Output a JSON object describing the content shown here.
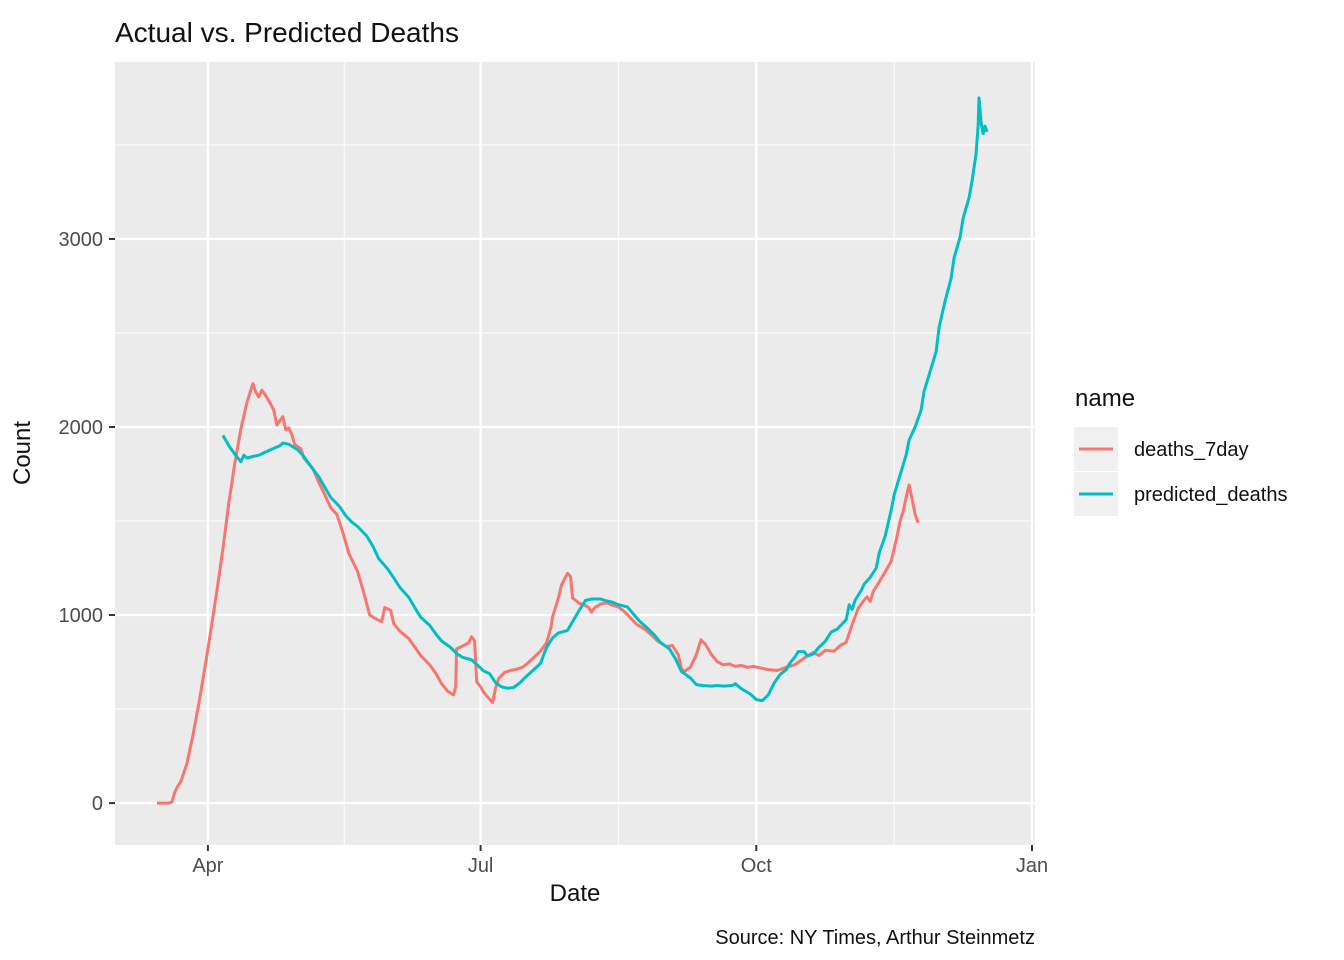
{
  "chart_data": {
    "type": "line",
    "title": "Actual vs. Predicted Deaths",
    "xlabel": "Date",
    "ylabel": "Count",
    "caption": "Source: NY Times, Arthur Steinmetz",
    "legend": {
      "title": "name",
      "position": "right",
      "entries": [
        "deaths_7day",
        "predicted_deaths"
      ]
    },
    "colors": {
      "deaths_7day": "#F8766D",
      "predicted_deaths": "#00BFC4",
      "panel_background": "#EBEBEB",
      "gridline": "#FFFFFF",
      "tick_mark": "#333333",
      "tick_text": "#4D4D4D",
      "legend_key_fill": "#F0F0F0",
      "plot_background": "#FFFFFF"
    },
    "x_axis": {
      "type": "date",
      "day0_date": "2020-03-01",
      "domain_days": [
        0,
        307
      ],
      "major_ticks": [
        {
          "day": 31,
          "label": "Apr"
        },
        {
          "day": 122,
          "label": "Jul"
        },
        {
          "day": 214,
          "label": "Oct"
        },
        {
          "day": 306,
          "label": "Jan"
        }
      ],
      "minor_tick_days": [
        76.5,
        168,
        260
      ]
    },
    "y_axis": {
      "domain": [
        -223,
        3941
      ],
      "major_ticks": [
        {
          "value": 0,
          "label": "0"
        },
        {
          "value": 1000,
          "label": "1000"
        },
        {
          "value": 2000,
          "label": "2000"
        },
        {
          "value": 3000,
          "label": "3000"
        }
      ],
      "minor_tick_values": [
        500,
        1500,
        2500,
        3500
      ]
    },
    "series": [
      {
        "name": "deaths_7day",
        "color": "#F8766D",
        "points": [
          [
            14,
            0
          ],
          [
            16,
            0
          ],
          [
            18,
            0
          ],
          [
            19,
            5
          ],
          [
            20,
            60
          ],
          [
            21,
            90
          ],
          [
            22,
            115
          ],
          [
            24,
            210
          ],
          [
            26,
            360
          ],
          [
            28,
            530
          ],
          [
            30,
            720
          ],
          [
            32,
            920
          ],
          [
            34,
            1130
          ],
          [
            36,
            1350
          ],
          [
            38,
            1600
          ],
          [
            40,
            1810
          ],
          [
            42,
            1990
          ],
          [
            44,
            2130
          ],
          [
            46,
            2230
          ],
          [
            47,
            2185
          ],
          [
            48,
            2160
          ],
          [
            49,
            2195
          ],
          [
            50,
            2175
          ],
          [
            52,
            2120
          ],
          [
            53,
            2090
          ],
          [
            54,
            2010
          ],
          [
            56,
            2055
          ],
          [
            57,
            1985
          ],
          [
            58,
            1995
          ],
          [
            59,
            1960
          ],
          [
            60,
            1905
          ],
          [
            62,
            1885
          ],
          [
            63,
            1835
          ],
          [
            66,
            1780
          ],
          [
            68,
            1705
          ],
          [
            70,
            1640
          ],
          [
            72,
            1570
          ],
          [
            74,
            1535
          ],
          [
            76,
            1440
          ],
          [
            78,
            1330
          ],
          [
            81,
            1230
          ],
          [
            83,
            1120
          ],
          [
            85,
            1000
          ],
          [
            87,
            980
          ],
          [
            89,
            965
          ],
          [
            90,
            1040
          ],
          [
            92,
            1025
          ],
          [
            93,
            955
          ],
          [
            95,
            915
          ],
          [
            98,
            875
          ],
          [
            100,
            830
          ],
          [
            102,
            785
          ],
          [
            105,
            735
          ],
          [
            107,
            690
          ],
          [
            109,
            635
          ],
          [
            111,
            595
          ],
          [
            113,
            575
          ],
          [
            113.7,
            620
          ],
          [
            114,
            820
          ],
          [
            116,
            835
          ],
          [
            118,
            852
          ],
          [
            119,
            885
          ],
          [
            120,
            862
          ],
          [
            120.7,
            645
          ],
          [
            122,
            618
          ],
          [
            123,
            590
          ],
          [
            125,
            552
          ],
          [
            126,
            535
          ],
          [
            127,
            612
          ],
          [
            128,
            662
          ],
          [
            130,
            695
          ],
          [
            132,
            705
          ],
          [
            134,
            712
          ],
          [
            136,
            722
          ],
          [
            138,
            748
          ],
          [
            140,
            778
          ],
          [
            142,
            808
          ],
          [
            144,
            852
          ],
          [
            145.5,
            935
          ],
          [
            146,
            990
          ],
          [
            148,
            1092
          ],
          [
            149,
            1160
          ],
          [
            151,
            1222
          ],
          [
            152,
            1205
          ],
          [
            152.7,
            1090
          ],
          [
            155,
            1062
          ],
          [
            157,
            1050
          ],
          [
            158,
            1040
          ],
          [
            159,
            1015
          ],
          [
            160,
            1038
          ],
          [
            162,
            1058
          ],
          [
            164,
            1065
          ],
          [
            166,
            1052
          ],
          [
            168,
            1042
          ],
          [
            170,
            1018
          ],
          [
            172,
            985
          ],
          [
            174,
            952
          ],
          [
            177,
            922
          ],
          [
            179,
            895
          ],
          [
            181,
            862
          ],
          [
            184,
            832
          ],
          [
            186,
            838
          ],
          [
            188,
            788
          ],
          [
            189,
            715
          ],
          [
            190,
            700
          ],
          [
            191,
            712
          ],
          [
            192,
            722
          ],
          [
            194,
            790
          ],
          [
            195.5,
            868
          ],
          [
            197,
            845
          ],
          [
            198,
            818
          ],
          [
            199,
            790
          ],
          [
            201,
            752
          ],
          [
            203,
            735
          ],
          [
            205,
            740
          ],
          [
            207,
            726
          ],
          [
            209,
            732
          ],
          [
            211,
            722
          ],
          [
            213,
            727
          ],
          [
            215,
            720
          ],
          [
            218,
            710
          ],
          [
            221,
            705
          ],
          [
            224,
            722
          ],
          [
            227,
            737
          ],
          [
            230,
            772
          ],
          [
            233,
            800
          ],
          [
            235,
            785
          ],
          [
            237,
            812
          ],
          [
            240,
            808
          ],
          [
            242,
            838
          ],
          [
            244,
            855
          ],
          [
            246,
            950
          ],
          [
            248,
            1035
          ],
          [
            250,
            1080
          ],
          [
            251,
            1097
          ],
          [
            252,
            1072
          ],
          [
            253,
            1125
          ],
          [
            255,
            1175
          ],
          [
            257,
            1230
          ],
          [
            259,
            1285
          ],
          [
            261,
            1420
          ],
          [
            262,
            1500
          ],
          [
            263,
            1548
          ],
          [
            264,
            1625
          ],
          [
            265,
            1692
          ],
          [
            266,
            1618
          ],
          [
            267,
            1535
          ],
          [
            268,
            1490
          ]
        ]
      },
      {
        "name": "predicted_deaths",
        "color": "#00BFC4",
        "points": [
          [
            36,
            1955
          ],
          [
            38,
            1900
          ],
          [
            40,
            1855
          ],
          [
            42,
            1815
          ],
          [
            43,
            1850
          ],
          [
            44,
            1835
          ],
          [
            46,
            1843
          ],
          [
            48,
            1850
          ],
          [
            50,
            1865
          ],
          [
            52,
            1880
          ],
          [
            55,
            1900
          ],
          [
            56,
            1915
          ],
          [
            58,
            1908
          ],
          [
            61,
            1878
          ],
          [
            63,
            1843
          ],
          [
            65,
            1798
          ],
          [
            68,
            1735
          ],
          [
            70,
            1680
          ],
          [
            72,
            1625
          ],
          [
            75,
            1575
          ],
          [
            77,
            1528
          ],
          [
            79,
            1495
          ],
          [
            81,
            1470
          ],
          [
            84,
            1420
          ],
          [
            86,
            1368
          ],
          [
            88,
            1300
          ],
          [
            91,
            1245
          ],
          [
            93,
            1198
          ],
          [
            95,
            1148
          ],
          [
            98,
            1095
          ],
          [
            100,
            1040
          ],
          [
            102,
            988
          ],
          [
            105,
            945
          ],
          [
            107,
            900
          ],
          [
            109,
            862
          ],
          [
            112,
            828
          ],
          [
            114,
            795
          ],
          [
            116,
            775
          ],
          [
            119,
            762
          ],
          [
            121,
            733
          ],
          [
            123,
            703
          ],
          [
            125,
            688
          ],
          [
            127,
            640
          ],
          [
            129,
            618
          ],
          [
            131,
            611
          ],
          [
            133,
            614
          ],
          [
            135,
            638
          ],
          [
            137,
            670
          ],
          [
            140,
            713
          ],
          [
            142,
            743
          ],
          [
            144,
            828
          ],
          [
            146,
            878
          ],
          [
            148,
            905
          ],
          [
            151,
            918
          ],
          [
            153,
            973
          ],
          [
            155,
            1028
          ],
          [
            157,
            1078
          ],
          [
            159,
            1085
          ],
          [
            162,
            1085
          ],
          [
            164,
            1075
          ],
          [
            166,
            1068
          ],
          [
            168,
            1055
          ],
          [
            171,
            1043
          ],
          [
            173,
            1005
          ],
          [
            175,
            968
          ],
          [
            178,
            925
          ],
          [
            180,
            893
          ],
          [
            182,
            855
          ],
          [
            185,
            820
          ],
          [
            187,
            768
          ],
          [
            189,
            700
          ],
          [
            192,
            665
          ],
          [
            194,
            630
          ],
          [
            196,
            625
          ],
          [
            199,
            622
          ],
          [
            201,
            625
          ],
          [
            203,
            622
          ],
          [
            206,
            625
          ],
          [
            207,
            635
          ],
          [
            209,
            608
          ],
          [
            212,
            580
          ],
          [
            214,
            550
          ],
          [
            216,
            545
          ],
          [
            218,
            575
          ],
          [
            220,
            640
          ],
          [
            222,
            685
          ],
          [
            224,
            710
          ],
          [
            225,
            740
          ],
          [
            227,
            780
          ],
          [
            228,
            806
          ],
          [
            230,
            805
          ],
          [
            231,
            782
          ],
          [
            233,
            792
          ],
          [
            235,
            830
          ],
          [
            237,
            860
          ],
          [
            239,
            910
          ],
          [
            241,
            925
          ],
          [
            244,
            975
          ],
          [
            245,
            1055
          ],
          [
            246,
            1030
          ],
          [
            247,
            1080
          ],
          [
            249,
            1130
          ],
          [
            250,
            1165
          ],
          [
            252,
            1200
          ],
          [
            254,
            1250
          ],
          [
            255,
            1330
          ],
          [
            257,
            1420
          ],
          [
            259,
            1558
          ],
          [
            260,
            1640
          ],
          [
            262,
            1745
          ],
          [
            264,
            1850
          ],
          [
            265,
            1930
          ],
          [
            267,
            2000
          ],
          [
            269,
            2090
          ],
          [
            270,
            2190
          ],
          [
            272,
            2295
          ],
          [
            274,
            2400
          ],
          [
            275,
            2530
          ],
          [
            277,
            2670
          ],
          [
            279,
            2790
          ],
          [
            280,
            2900
          ],
          [
            282,
            3010
          ],
          [
            283,
            3110
          ],
          [
            285,
            3220
          ],
          [
            286,
            3310
          ],
          [
            287.3,
            3450
          ],
          [
            288,
            3600
          ],
          [
            288.3,
            3750
          ],
          [
            289,
            3620
          ],
          [
            289.3,
            3590
          ],
          [
            289.7,
            3560
          ],
          [
            290.3,
            3600
          ],
          [
            291,
            3570
          ]
        ]
      }
    ]
  }
}
